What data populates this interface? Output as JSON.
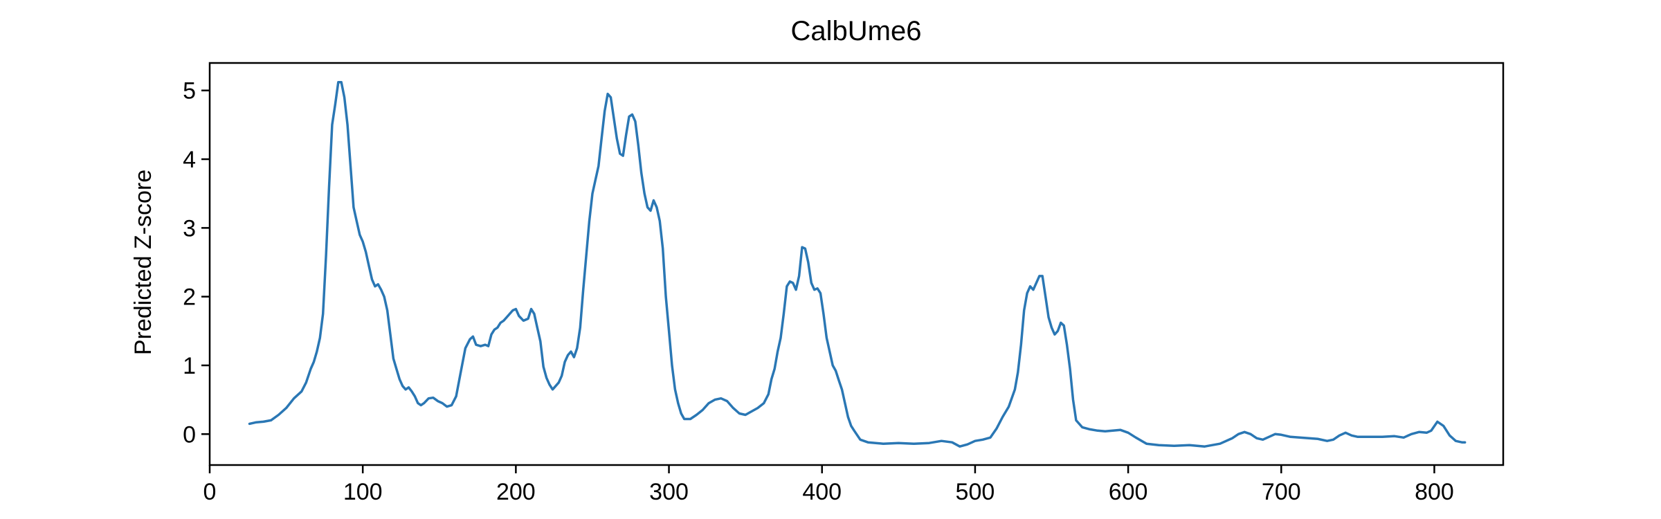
{
  "chart_data": {
    "type": "line",
    "title": "CalbUme6",
    "xlabel": "",
    "ylabel": "Predicted Z-score",
    "xlim": [
      0,
      845
    ],
    "ylim": [
      -0.45,
      5.4
    ],
    "xticks": [
      0,
      100,
      200,
      300,
      400,
      500,
      600,
      700,
      800
    ],
    "yticks": [
      0,
      1,
      2,
      3,
      4,
      5
    ],
    "grid": false,
    "legend": "none",
    "color": "#2a77b4",
    "series": [
      {
        "points": [
          [
            26,
            0.15
          ],
          [
            30,
            0.17
          ],
          [
            35,
            0.18
          ],
          [
            40,
            0.2
          ],
          [
            45,
            0.28
          ],
          [
            50,
            0.38
          ],
          [
            55,
            0.52
          ],
          [
            60,
            0.62
          ],
          [
            63,
            0.75
          ],
          [
            66,
            0.95
          ],
          [
            68,
            1.05
          ],
          [
            70,
            1.2
          ],
          [
            72,
            1.4
          ],
          [
            74,
            1.75
          ],
          [
            76,
            2.6
          ],
          [
            78,
            3.6
          ],
          [
            80,
            4.5
          ],
          [
            82,
            4.8
          ],
          [
            84,
            5.12
          ],
          [
            86,
            5.12
          ],
          [
            88,
            4.9
          ],
          [
            90,
            4.5
          ],
          [
            92,
            3.9
          ],
          [
            94,
            3.3
          ],
          [
            96,
            3.1
          ],
          [
            98,
            2.9
          ],
          [
            100,
            2.8
          ],
          [
            102,
            2.65
          ],
          [
            104,
            2.45
          ],
          [
            106,
            2.25
          ],
          [
            108,
            2.15
          ],
          [
            110,
            2.18
          ],
          [
            112,
            2.1
          ],
          [
            114,
            2.0
          ],
          [
            116,
            1.8
          ],
          [
            118,
            1.45
          ],
          [
            120,
            1.1
          ],
          [
            122,
            0.95
          ],
          [
            124,
            0.8
          ],
          [
            126,
            0.7
          ],
          [
            128,
            0.65
          ],
          [
            130,
            0.68
          ],
          [
            132,
            0.62
          ],
          [
            134,
            0.55
          ],
          [
            136,
            0.45
          ],
          [
            138,
            0.42
          ],
          [
            140,
            0.45
          ],
          [
            143,
            0.52
          ],
          [
            146,
            0.53
          ],
          [
            149,
            0.48
          ],
          [
            152,
            0.45
          ],
          [
            155,
            0.4
          ],
          [
            158,
            0.42
          ],
          [
            161,
            0.55
          ],
          [
            164,
            0.9
          ],
          [
            167,
            1.25
          ],
          [
            170,
            1.38
          ],
          [
            172,
            1.42
          ],
          [
            174,
            1.3
          ],
          [
            177,
            1.28
          ],
          [
            180,
            1.3
          ],
          [
            182,
            1.28
          ],
          [
            184,
            1.45
          ],
          [
            186,
            1.52
          ],
          [
            188,
            1.55
          ],
          [
            190,
            1.62
          ],
          [
            192,
            1.65
          ],
          [
            194,
            1.7
          ],
          [
            196,
            1.75
          ],
          [
            198,
            1.8
          ],
          [
            200,
            1.82
          ],
          [
            202,
            1.72
          ],
          [
            205,
            1.65
          ],
          [
            208,
            1.68
          ],
          [
            210,
            1.82
          ],
          [
            212,
            1.75
          ],
          [
            214,
            1.55
          ],
          [
            216,
            1.35
          ],
          [
            218,
            0.98
          ],
          [
            220,
            0.82
          ],
          [
            222,
            0.72
          ],
          [
            224,
            0.65
          ],
          [
            226,
            0.7
          ],
          [
            228,
            0.75
          ],
          [
            230,
            0.85
          ],
          [
            232,
            1.05
          ],
          [
            234,
            1.15
          ],
          [
            236,
            1.2
          ],
          [
            238,
            1.12
          ],
          [
            240,
            1.25
          ],
          [
            242,
            1.55
          ],
          [
            244,
            2.1
          ],
          [
            246,
            2.6
          ],
          [
            248,
            3.1
          ],
          [
            250,
            3.5
          ],
          [
            252,
            3.7
          ],
          [
            254,
            3.9
          ],
          [
            256,
            4.3
          ],
          [
            258,
            4.7
          ],
          [
            260,
            4.95
          ],
          [
            262,
            4.9
          ],
          [
            264,
            4.6
          ],
          [
            266,
            4.3
          ],
          [
            268,
            4.08
          ],
          [
            270,
            4.05
          ],
          [
            272,
            4.35
          ],
          [
            274,
            4.62
          ],
          [
            276,
            4.65
          ],
          [
            278,
            4.55
          ],
          [
            280,
            4.2
          ],
          [
            282,
            3.8
          ],
          [
            284,
            3.5
          ],
          [
            286,
            3.3
          ],
          [
            288,
            3.25
          ],
          [
            290,
            3.4
          ],
          [
            292,
            3.3
          ],
          [
            294,
            3.1
          ],
          [
            296,
            2.7
          ],
          [
            298,
            2.0
          ],
          [
            300,
            1.5
          ],
          [
            302,
            1.0
          ],
          [
            304,
            0.65
          ],
          [
            306,
            0.45
          ],
          [
            308,
            0.3
          ],
          [
            310,
            0.22
          ],
          [
            314,
            0.22
          ],
          [
            318,
            0.28
          ],
          [
            322,
            0.35
          ],
          [
            326,
            0.45
          ],
          [
            330,
            0.5
          ],
          [
            334,
            0.52
          ],
          [
            338,
            0.48
          ],
          [
            342,
            0.38
          ],
          [
            346,
            0.3
          ],
          [
            350,
            0.28
          ],
          [
            354,
            0.33
          ],
          [
            358,
            0.38
          ],
          [
            362,
            0.45
          ],
          [
            365,
            0.58
          ],
          [
            367,
            0.8
          ],
          [
            369,
            0.95
          ],
          [
            371,
            1.2
          ],
          [
            373,
            1.4
          ],
          [
            375,
            1.75
          ],
          [
            377,
            2.15
          ],
          [
            379,
            2.22
          ],
          [
            381,
            2.2
          ],
          [
            383,
            2.1
          ],
          [
            385,
            2.3
          ],
          [
            387,
            2.72
          ],
          [
            389,
            2.7
          ],
          [
            391,
            2.5
          ],
          [
            393,
            2.2
          ],
          [
            395,
            2.1
          ],
          [
            397,
            2.12
          ],
          [
            399,
            2.05
          ],
          [
            401,
            1.75
          ],
          [
            403,
            1.4
          ],
          [
            405,
            1.2
          ],
          [
            407,
            1.0
          ],
          [
            409,
            0.92
          ],
          [
            411,
            0.78
          ],
          [
            413,
            0.65
          ],
          [
            415,
            0.45
          ],
          [
            417,
            0.25
          ],
          [
            419,
            0.12
          ],
          [
            421,
            0.05
          ],
          [
            425,
            -0.08
          ],
          [
            430,
            -0.12
          ],
          [
            440,
            -0.14
          ],
          [
            450,
            -0.13
          ],
          [
            460,
            -0.14
          ],
          [
            470,
            -0.13
          ],
          [
            478,
            -0.1
          ],
          [
            485,
            -0.12
          ],
          [
            490,
            -0.18
          ],
          [
            495,
            -0.15
          ],
          [
            500,
            -0.1
          ],
          [
            505,
            -0.08
          ],
          [
            510,
            -0.05
          ],
          [
            514,
            0.08
          ],
          [
            518,
            0.25
          ],
          [
            522,
            0.4
          ],
          [
            526,
            0.65
          ],
          [
            528,
            0.9
          ],
          [
            530,
            1.3
          ],
          [
            532,
            1.8
          ],
          [
            534,
            2.05
          ],
          [
            536,
            2.15
          ],
          [
            538,
            2.1
          ],
          [
            540,
            2.2
          ],
          [
            542,
            2.3
          ],
          [
            544,
            2.3
          ],
          [
            546,
            2.0
          ],
          [
            548,
            1.7
          ],
          [
            550,
            1.55
          ],
          [
            552,
            1.45
          ],
          [
            554,
            1.5
          ],
          [
            556,
            1.62
          ],
          [
            558,
            1.58
          ],
          [
            560,
            1.3
          ],
          [
            562,
            0.95
          ],
          [
            564,
            0.5
          ],
          [
            566,
            0.2
          ],
          [
            570,
            0.1
          ],
          [
            575,
            0.07
          ],
          [
            580,
            0.05
          ],
          [
            585,
            0.04
          ],
          [
            590,
            0.05
          ],
          [
            595,
            0.06
          ],
          [
            600,
            0.02
          ],
          [
            605,
            -0.05
          ],
          [
            612,
            -0.14
          ],
          [
            620,
            -0.16
          ],
          [
            630,
            -0.17
          ],
          [
            640,
            -0.16
          ],
          [
            650,
            -0.18
          ],
          [
            660,
            -0.14
          ],
          [
            668,
            -0.06
          ],
          [
            672,
            0.0
          ],
          [
            676,
            0.03
          ],
          [
            680,
            0.0
          ],
          [
            684,
            -0.06
          ],
          [
            688,
            -0.08
          ],
          [
            692,
            -0.04
          ],
          [
            696,
            0.0
          ],
          [
            700,
            -0.01
          ],
          [
            706,
            -0.04
          ],
          [
            712,
            -0.05
          ],
          [
            718,
            -0.06
          ],
          [
            724,
            -0.07
          ],
          [
            730,
            -0.1
          ],
          [
            734,
            -0.08
          ],
          [
            738,
            -0.02
          ],
          [
            742,
            0.02
          ],
          [
            746,
            -0.02
          ],
          [
            750,
            -0.04
          ],
          [
            758,
            -0.04
          ],
          [
            766,
            -0.04
          ],
          [
            774,
            -0.03
          ],
          [
            780,
            -0.05
          ],
          [
            785,
            0.0
          ],
          [
            790,
            0.03
          ],
          [
            795,
            0.02
          ],
          [
            798,
            0.05
          ],
          [
            802,
            0.18
          ],
          [
            806,
            0.12
          ],
          [
            810,
            -0.02
          ],
          [
            814,
            -0.1
          ],
          [
            818,
            -0.12
          ],
          [
            820,
            -0.12
          ]
        ]
      }
    ]
  }
}
